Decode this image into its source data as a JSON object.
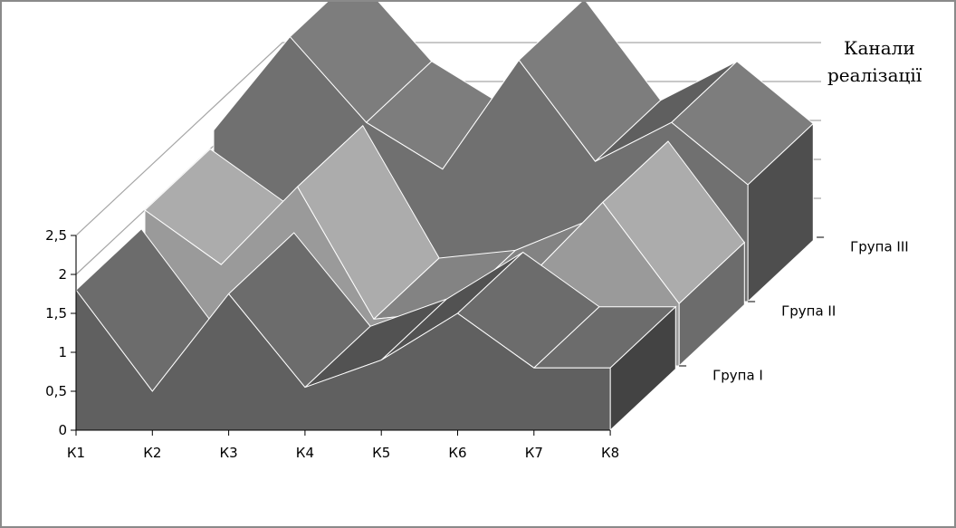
{
  "chart_data": {
    "type": "area",
    "subtype": "3d-area",
    "categories": [
      "К1",
      "К2",
      "К3",
      "К4",
      "К5",
      "К6",
      "К7",
      "К8"
    ],
    "series": [
      {
        "name": "Група I",
        "values": [
          1.8,
          0.5,
          1.75,
          0.55,
          0.9,
          1.5,
          0.8,
          0.8
        ],
        "color": "#606060"
      },
      {
        "name": "Група II",
        "values": [
          2.0,
          1.3,
          2.3,
          0.6,
          0.7,
          1.1,
          2.1,
          0.8
        ],
        "color": "#9a9a9a"
      },
      {
        "name": "Група III",
        "values": [
          2.2,
          3.4,
          2.3,
          1.7,
          3.1,
          1.8,
          2.3,
          1.5
        ],
        "color": "#707070"
      }
    ],
    "y_ticks": [
      "0",
      "0,5",
      "1",
      "1,5",
      "2",
      "2,5"
    ],
    "ylim": [
      0,
      2.5
    ],
    "depth_title": [
      "Канали",
      "реалізації"
    ],
    "grid": true,
    "colors": {
      "grid": "#a6a6a6",
      "edge": "#ffffff",
      "frame": "#8a8a8a"
    }
  }
}
